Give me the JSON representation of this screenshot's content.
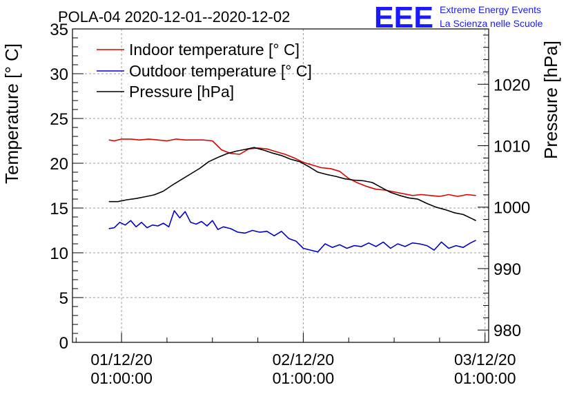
{
  "chart_data": {
    "type": "line",
    "title": "POLA-04 2020-12-01--2020-12-02",
    "logo": {
      "mark": "EEE",
      "line1": "Extreme Energy Events",
      "line2": "La Scienza nelle Scuole",
      "color": "#1a1aff"
    },
    "ylabel": "Temperature [° C]",
    "y2label": "Pressure [hPa]",
    "ylim": [
      0,
      35
    ],
    "y2lim": [
      978,
      1029
    ],
    "xlim": [
      -0.27,
      2.02
    ],
    "yticks": [
      0,
      5,
      10,
      15,
      20,
      25,
      30,
      35
    ],
    "y2ticks": [
      980,
      990,
      1000,
      1010,
      1020
    ],
    "xticks": [
      {
        "value": 0,
        "date": "01/12/20",
        "time": "01:00:00"
      },
      {
        "value": 1,
        "date": "02/12/20",
        "time": "01:00:00"
      },
      {
        "value": 2,
        "date": "03/12/20",
        "time": "01:00:00"
      }
    ],
    "x_unit": "days since 01/12/20 01:00:00",
    "grid": true,
    "legend_position": "top-left",
    "series": [
      {
        "name": "Indoor temperature [° C]",
        "axis": "left",
        "color": "#e00000",
        "x": [
          -0.07,
          -0.04,
          0.0,
          0.05,
          0.1,
          0.15,
          0.2,
          0.25,
          0.3,
          0.35,
          0.4,
          0.45,
          0.5,
          0.55,
          0.6,
          0.65,
          0.7,
          0.75,
          0.8,
          0.85,
          0.9,
          0.95,
          1.0,
          1.05,
          1.1,
          1.15,
          1.2,
          1.25,
          1.3,
          1.35,
          1.4,
          1.45,
          1.5,
          1.55,
          1.6,
          1.65,
          1.7,
          1.75,
          1.8,
          1.85,
          1.9,
          1.95
        ],
        "y": [
          22.6,
          22.5,
          22.7,
          22.7,
          22.6,
          22.7,
          22.6,
          22.5,
          22.7,
          22.6,
          22.6,
          22.6,
          22.5,
          21.5,
          21.1,
          21.0,
          21.6,
          21.7,
          21.6,
          21.3,
          21.0,
          20.6,
          20.1,
          19.8,
          19.5,
          19.4,
          19.1,
          18.3,
          17.8,
          17.4,
          17.1,
          17.0,
          16.8,
          16.6,
          16.4,
          16.5,
          16.4,
          16.3,
          16.5,
          16.3,
          16.5,
          16.4
        ]
      },
      {
        "name": "Outdoor temperature [° C]",
        "axis": "left",
        "color": "#0000d0",
        "x": [
          -0.07,
          -0.04,
          -0.01,
          0.02,
          0.05,
          0.08,
          0.11,
          0.14,
          0.17,
          0.2,
          0.23,
          0.26,
          0.29,
          0.32,
          0.35,
          0.38,
          0.41,
          0.44,
          0.47,
          0.5,
          0.53,
          0.56,
          0.6,
          0.64,
          0.68,
          0.72,
          0.76,
          0.8,
          0.84,
          0.88,
          0.92,
          0.96,
          1.0,
          1.04,
          1.08,
          1.12,
          1.16,
          1.2,
          1.24,
          1.28,
          1.32,
          1.36,
          1.4,
          1.44,
          1.48,
          1.52,
          1.56,
          1.6,
          1.64,
          1.68,
          1.72,
          1.76,
          1.8,
          1.84,
          1.88,
          1.92,
          1.95
        ],
        "y": [
          12.7,
          12.8,
          13.4,
          13.1,
          13.6,
          12.9,
          13.4,
          12.8,
          13.1,
          13.0,
          13.3,
          12.9,
          14.7,
          13.9,
          14.6,
          13.4,
          13.2,
          13.5,
          13.0,
          13.6,
          12.6,
          12.9,
          12.7,
          12.3,
          12.2,
          12.5,
          12.3,
          12.4,
          11.9,
          12.4,
          11.6,
          11.3,
          10.5,
          10.3,
          10.1,
          11.0,
          10.6,
          10.9,
          10.5,
          10.8,
          10.7,
          11.1,
          10.7,
          11.2,
          10.5,
          11.0,
          10.7,
          11.1,
          11.0,
          10.8,
          10.3,
          11.2,
          10.5,
          10.8,
          10.6,
          11.1,
          11.4
        ]
      },
      {
        "name": "Pressure [hPa]",
        "axis": "right",
        "color": "#000000",
        "x": [
          -0.07,
          -0.02,
          0.03,
          0.08,
          0.13,
          0.18,
          0.23,
          0.28,
          0.33,
          0.38,
          0.43,
          0.48,
          0.53,
          0.58,
          0.63,
          0.68,
          0.73,
          0.78,
          0.83,
          0.88,
          0.93,
          0.98,
          1.03,
          1.08,
          1.13,
          1.18,
          1.23,
          1.28,
          1.33,
          1.38,
          1.43,
          1.48,
          1.53,
          1.58,
          1.63,
          1.68,
          1.73,
          1.78,
          1.83,
          1.88,
          1.93,
          1.95
        ],
        "y": [
          1000.9,
          1000.9,
          1001.2,
          1001.4,
          1001.7,
          1002.0,
          1002.6,
          1003.6,
          1004.5,
          1005.4,
          1006.3,
          1007.4,
          1008.1,
          1008.7,
          1009.1,
          1009.4,
          1009.7,
          1009.3,
          1008.8,
          1008.4,
          1007.8,
          1007.4,
          1006.6,
          1005.7,
          1005.3,
          1005.0,
          1004.6,
          1004.4,
          1004.3,
          1004.0,
          1003.2,
          1002.4,
          1001.9,
          1001.5,
          1001.3,
          1000.6,
          1000.0,
          999.6,
          999.1,
          998.8,
          998.1,
          997.8
        ]
      }
    ]
  }
}
